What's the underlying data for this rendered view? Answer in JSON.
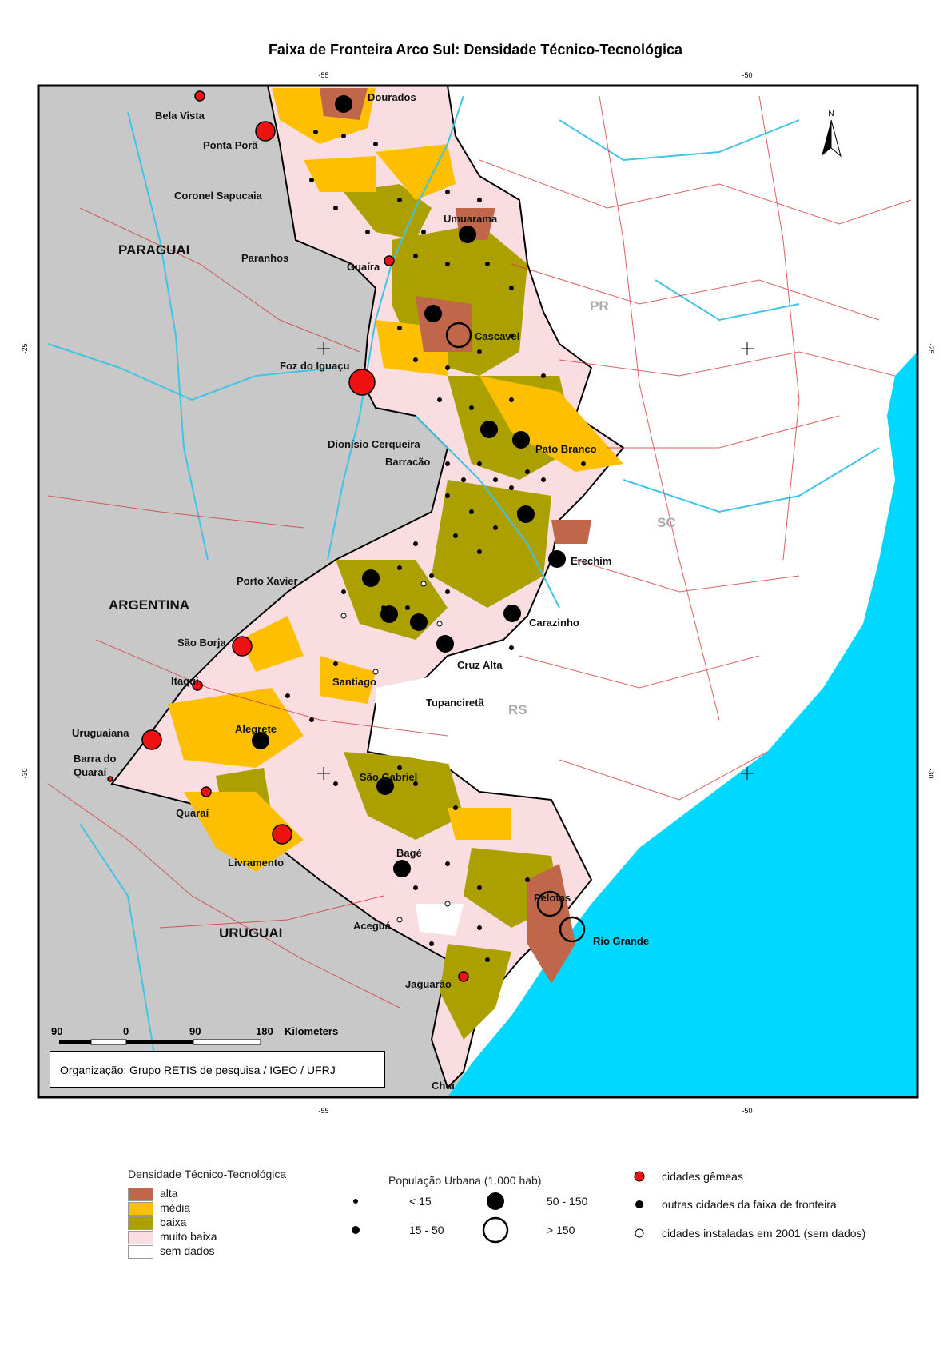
{
  "title": "Faixa de Fronteira Arco Sul: Densidade Técnico-Tecnológica",
  "grid_labels": {
    "lon_55": "-55",
    "lon_50": "-50",
    "lat_25": "-25",
    "lat_30": "-30"
  },
  "countries": [
    "PARAGUAI",
    "ARGENTINA",
    "URUGUAI"
  ],
  "states": [
    "PR",
    "SC",
    "RS"
  ],
  "cities": {
    "dourados": "Dourados",
    "bela_vista": "Bela Vista",
    "ponta_pora": "Ponta Porã",
    "coronel_sapucaia": "Coronel Sapucaia",
    "paranhos": "Paranhos",
    "umuarama": "Umuarama",
    "guaira": "Guaíra",
    "cascavel": "Cascavel",
    "foz": "Foz do Iguaçu",
    "dionisio": "Dionísio Cerqueira",
    "barracao": "Barracão",
    "pato_branco": "Pato Branco",
    "erechim": "Erechim",
    "porto_xavier": "Porto Xavier",
    "carazinho": "Carazinho",
    "sao_borja": "São Borja",
    "itaqui": "Itaqui",
    "santiago": "Santiago",
    "cruz_alta": "Cruz Alta",
    "tupancireta": "Tupanciretã",
    "uruguaiana": "Uruguaiana",
    "barra_quarai_1": "Barra do",
    "barra_quarai_2": "Quaraí",
    "alegrete": "Alegrete",
    "sao_gabriel": "São Gabriel",
    "quarai": "Quaraí",
    "livramento": "Livramento",
    "bage": "Bagé",
    "pelotas": "Pelotas",
    "rio_grande": "Rio Grande",
    "acegua": "Aceguá",
    "jaguarao": "Jaguarão",
    "chui": "Chuí"
  },
  "scale": {
    "t0": "90",
    "t1": "0",
    "t2": "90",
    "t3": "180",
    "unit": "Kilometers"
  },
  "credit": "Organização: Grupo RETIS de pesquisa / IGEO / UFRJ",
  "legend": {
    "density_title": "Densidade Técnico-Tecnológica",
    "density_classes": [
      {
        "label": "alta",
        "color": "#c0674b"
      },
      {
        "label": "média",
        "color": "#fdbf00"
      },
      {
        "label": "baixa",
        "color": "#aba000"
      },
      {
        "label": "muito baixa",
        "color": "#f9dde0"
      },
      {
        "label": "sem dados",
        "color": "#ffffff"
      }
    ],
    "pop_title": "População Urbana (1.000 hab)",
    "pop_classes": [
      "< 15",
      "15 - 50",
      "50 - 150",
      "> 150"
    ],
    "point_types": [
      "cidades gêmeas",
      "outras cidades da faixa de fronteira",
      "cidades instaladas em 2001 (sem dados)"
    ]
  },
  "colors": {
    "ocean": "#00d8ff",
    "neighbor": "#c8c8c8",
    "twin_city": "#ee1111",
    "roads": "#d13a3a",
    "rivers": "#3fc4e6"
  }
}
